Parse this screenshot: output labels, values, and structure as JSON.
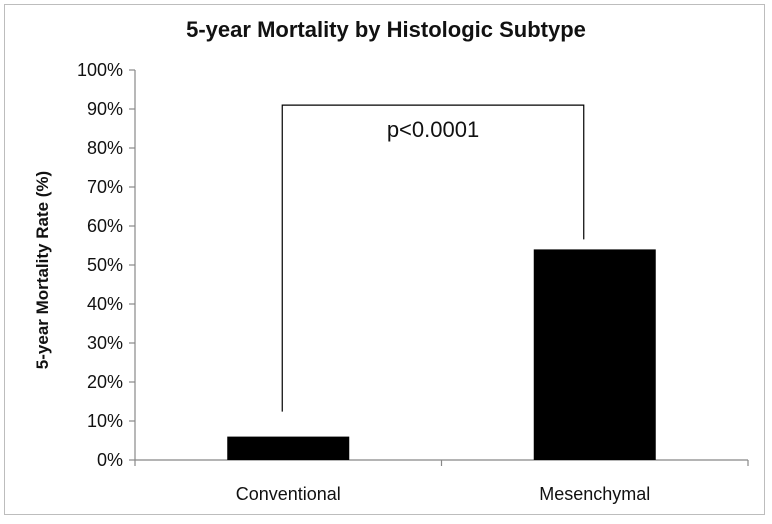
{
  "chart_data": {
    "type": "bar",
    "title": "5-year Mortality by Histologic Subtype",
    "xlabel": "",
    "ylabel": "5-year Mortality Rate (%)",
    "categories": [
      "Conventional",
      "Mesenchymal"
    ],
    "values": [
      6,
      54
    ],
    "ylim": [
      0,
      100
    ],
    "yticks": [
      0,
      10,
      20,
      30,
      40,
      50,
      60,
      70,
      80,
      90,
      100
    ],
    "ytick_labels": [
      "0%",
      "10%",
      "20%",
      "30%",
      "40%",
      "50%",
      "60%",
      "70%",
      "80%",
      "90%",
      "100%"
    ],
    "annotation": "p<0.0001",
    "bar_color": "#000000",
    "grid": false,
    "legend": "none"
  }
}
